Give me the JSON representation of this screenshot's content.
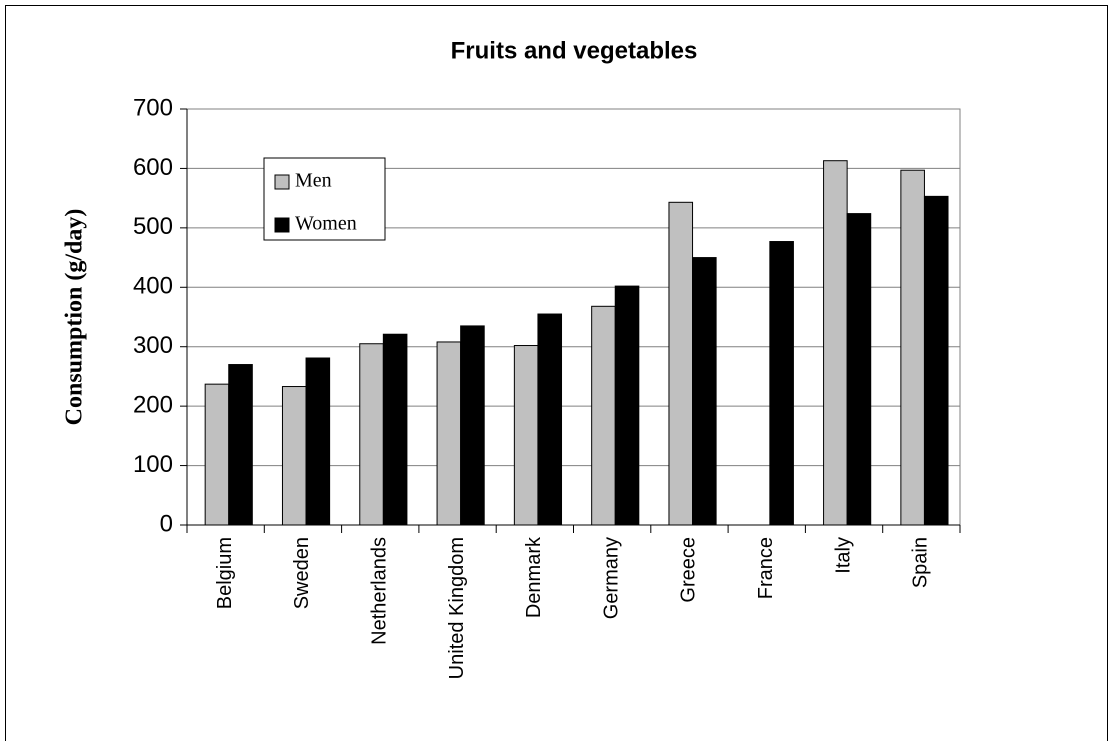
{
  "chart_data": {
    "type": "bar",
    "title": "Fruits and vegetables",
    "y_label": "Consumption (g/day)",
    "categories": [
      "Belgium",
      "Sweden",
      "Netherlands",
      "United Kingdom",
      "Denmark",
      "Germany",
      "Greece",
      "France",
      "Italy",
      "Spain"
    ],
    "series": [
      {
        "name": "Men",
        "color": "#c0c0c0",
        "values": [
          237,
          233,
          305,
          308,
          302,
          368,
          543,
          null,
          613,
          597
        ]
      },
      {
        "name": "Women",
        "color": "#000000",
        "values": [
          270,
          281,
          321,
          335,
          355,
          402,
          450,
          477,
          524,
          553
        ]
      }
    ],
    "ylim": [
      0,
      700
    ],
    "yticks": [
      0,
      100,
      200,
      300,
      400,
      500,
      600,
      700
    ],
    "grid": true,
    "legend": "upper left"
  }
}
